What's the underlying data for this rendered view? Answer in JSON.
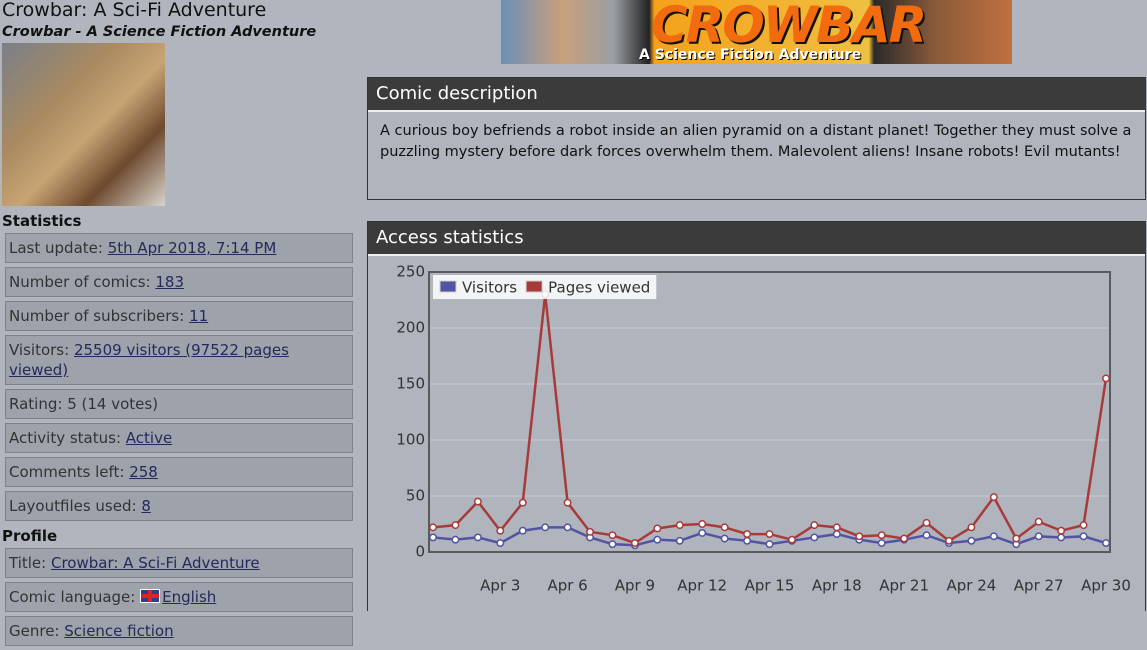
{
  "header": {
    "title": "Crowbar: A Sci-Fi Adventure",
    "subtitle": "Crowbar - A Science Fiction Adventure"
  },
  "banner": {
    "title": "CROWBAR",
    "subtitle": "A Science Fiction Adventure"
  },
  "sidebar": {
    "statistics_heading": "Statistics",
    "statistics": [
      {
        "label": "Last update:",
        "value": "5th Apr 2018, 7:14 PM"
      },
      {
        "label": "Number of comics:",
        "value": "183"
      },
      {
        "label": "Number of subscribers:",
        "value": "11"
      },
      {
        "label": "Visitors:",
        "value": "25509 visitors (97522 pages viewed)"
      },
      {
        "label": "Rating:",
        "value": "5 (14 votes)"
      },
      {
        "label": "Activity status:",
        "value": "Active"
      },
      {
        "label": "Comments left:",
        "value": "258"
      },
      {
        "label": "Layoutfiles used:",
        "value": "8"
      }
    ],
    "profile_heading": "Profile",
    "profile": [
      {
        "label": "Title:",
        "value": "Crowbar: A Sci-Fi Adventure"
      },
      {
        "label": "Comic language:",
        "value": "English"
      },
      {
        "label": "Genre:",
        "value": "Science fiction"
      }
    ]
  },
  "description": {
    "heading": "Comic description",
    "text": "A curious boy befriends a robot inside an alien pyramid on a distant planet! Together they must solve a puzzling mystery before dark forces overwhelm them. Malevolent aliens! Insane robots! Evil mutants!"
  },
  "statistics_panel": {
    "heading": "Access statistics"
  },
  "chart_data": {
    "type": "line",
    "categories": [
      null,
      null,
      null,
      "Apr 3",
      null,
      null,
      "Apr 6",
      null,
      null,
      "Apr 9",
      null,
      null,
      "Apr 12",
      null,
      null,
      "Apr 15",
      null,
      null,
      "Apr 18",
      null,
      null,
      "Apr 21",
      null,
      null,
      "Apr 24",
      null,
      null,
      "Apr 27",
      null,
      null,
      "Apr 30"
    ],
    "series": [
      {
        "name": "Visitors",
        "color": "#5353a3",
        "values": [
          13,
          11,
          13,
          8,
          19,
          22,
          22,
          13,
          7,
          6,
          11,
          10,
          17,
          12,
          10,
          7,
          10,
          13,
          16,
          11,
          8,
          11,
          15,
          8,
          10,
          14,
          7,
          14,
          13,
          14,
          8
        ]
      },
      {
        "name": "Pages viewed",
        "color": "#a83a3a",
        "values": [
          22,
          24,
          45,
          19,
          44,
          230,
          44,
          18,
          15,
          8,
          21,
          24,
          25,
          22,
          16,
          16,
          11,
          24,
          22,
          14,
          15,
          12,
          26,
          10,
          22,
          49,
          12,
          27,
          19,
          24,
          155
        ]
      }
    ],
    "ylim": [
      0,
      250
    ],
    "yticks": [
      0,
      50,
      100,
      150,
      200,
      250
    ],
    "grid": true,
    "legend": "top-left"
  }
}
